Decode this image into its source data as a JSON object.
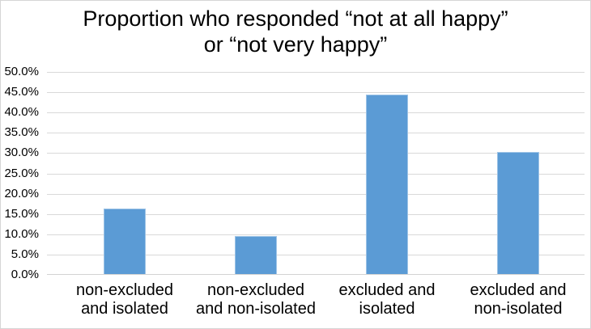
{
  "chart": {
    "title_display": "Proportion who responded “not at all happy”\nor “not very happy”",
    "y_axis": {
      "tick_labels_desc": [
        "50.0%",
        "45.0%",
        "40.0%",
        "35.0%",
        "30.0%",
        "25.0%",
        "20.0%",
        "15.0%",
        "10.0%",
        "5.0%",
        "0.0%"
      ]
    },
    "x_axis": {
      "labels_display": [
        "non-excluded\nand isolated",
        "non-excluded\nand non-isolated",
        "excluded and\nisolated",
        "excluded and\nnon-isolated"
      ]
    }
  },
  "chart_data": {
    "type": "bar",
    "title": "Proportion who responded “not at all happy” or “not very happy”",
    "categories": [
      "non-excluded and isolated",
      "non-excluded and non-isolated",
      "excluded and isolated",
      "excluded and non-isolated"
    ],
    "values": [
      16.1,
      9.3,
      44.3,
      30.0
    ],
    "value_unit": "%",
    "xlabel": "",
    "ylabel": "",
    "ylim": [
      0,
      50
    ],
    "ytick_step": 5,
    "grid": true,
    "legend": false,
    "colors": {
      "bar_fill": "#5B9BD5",
      "bar_border": "#9DC3E6",
      "gridline": "#D9D9D9",
      "axis_line": "#D3D3D3",
      "text": "#000000",
      "background": "#FFFFFF",
      "frame_border": "#D6D6D6"
    }
  }
}
